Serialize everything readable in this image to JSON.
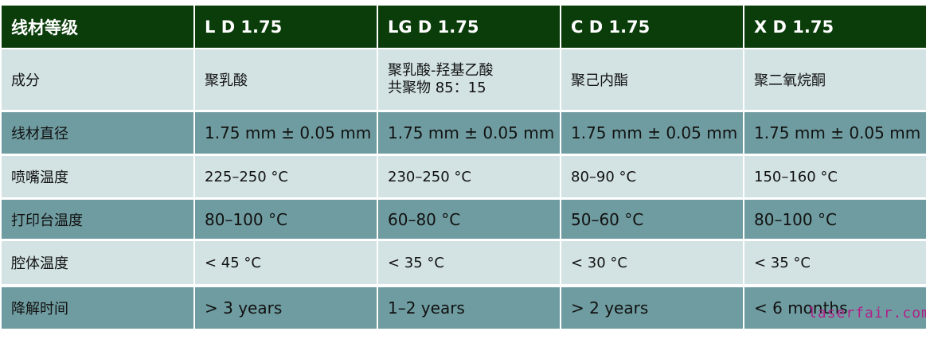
{
  "header": [
    "线材等级",
    "L D 1.75",
    "LG D 1.75",
    "C D 1.75",
    "X D 1.75"
  ],
  "rows": [
    {
      "label": "成分",
      "values": [
        "聚乳酸",
        "聚乳酸-羟基乙酸\n共聚物 85：15",
        "聚己内酯",
        "聚二氧烷酮"
      ]
    },
    {
      "label": "线材直径",
      "values": [
        "1.75 mm ± 0.05 mm",
        "1.75 mm ± 0.05 mm",
        "1.75 mm ± 0.05 mm",
        "1.75 mm ± 0.05 mm"
      ]
    },
    {
      "label": "喷嘴温度",
      "values": [
        "225–250 °C",
        "230–250 °C",
        "80–90 °C",
        "150–160 °C"
      ]
    },
    {
      "label": "打印台温度",
      "values": [
        "80–100 °C",
        "60–80 °C",
        "50–60 °C",
        "80–100 °C"
      ]
    },
    {
      "label": "腔体温度",
      "values": [
        "< 45 °C",
        "< 35 °C",
        "< 30 °C",
        "< 35 °C"
      ]
    },
    {
      "label": "降解时间",
      "values": [
        "> 3 years",
        "1–2 years",
        "> 2 years",
        "< 6 months"
      ]
    }
  ],
  "watermark": "laserfair.com",
  "colors": {
    "header": "#0b3d0b",
    "light_row": "#d3e3e4",
    "dark_row": "#6f9ca0",
    "watermark": "#b0208a"
  }
}
